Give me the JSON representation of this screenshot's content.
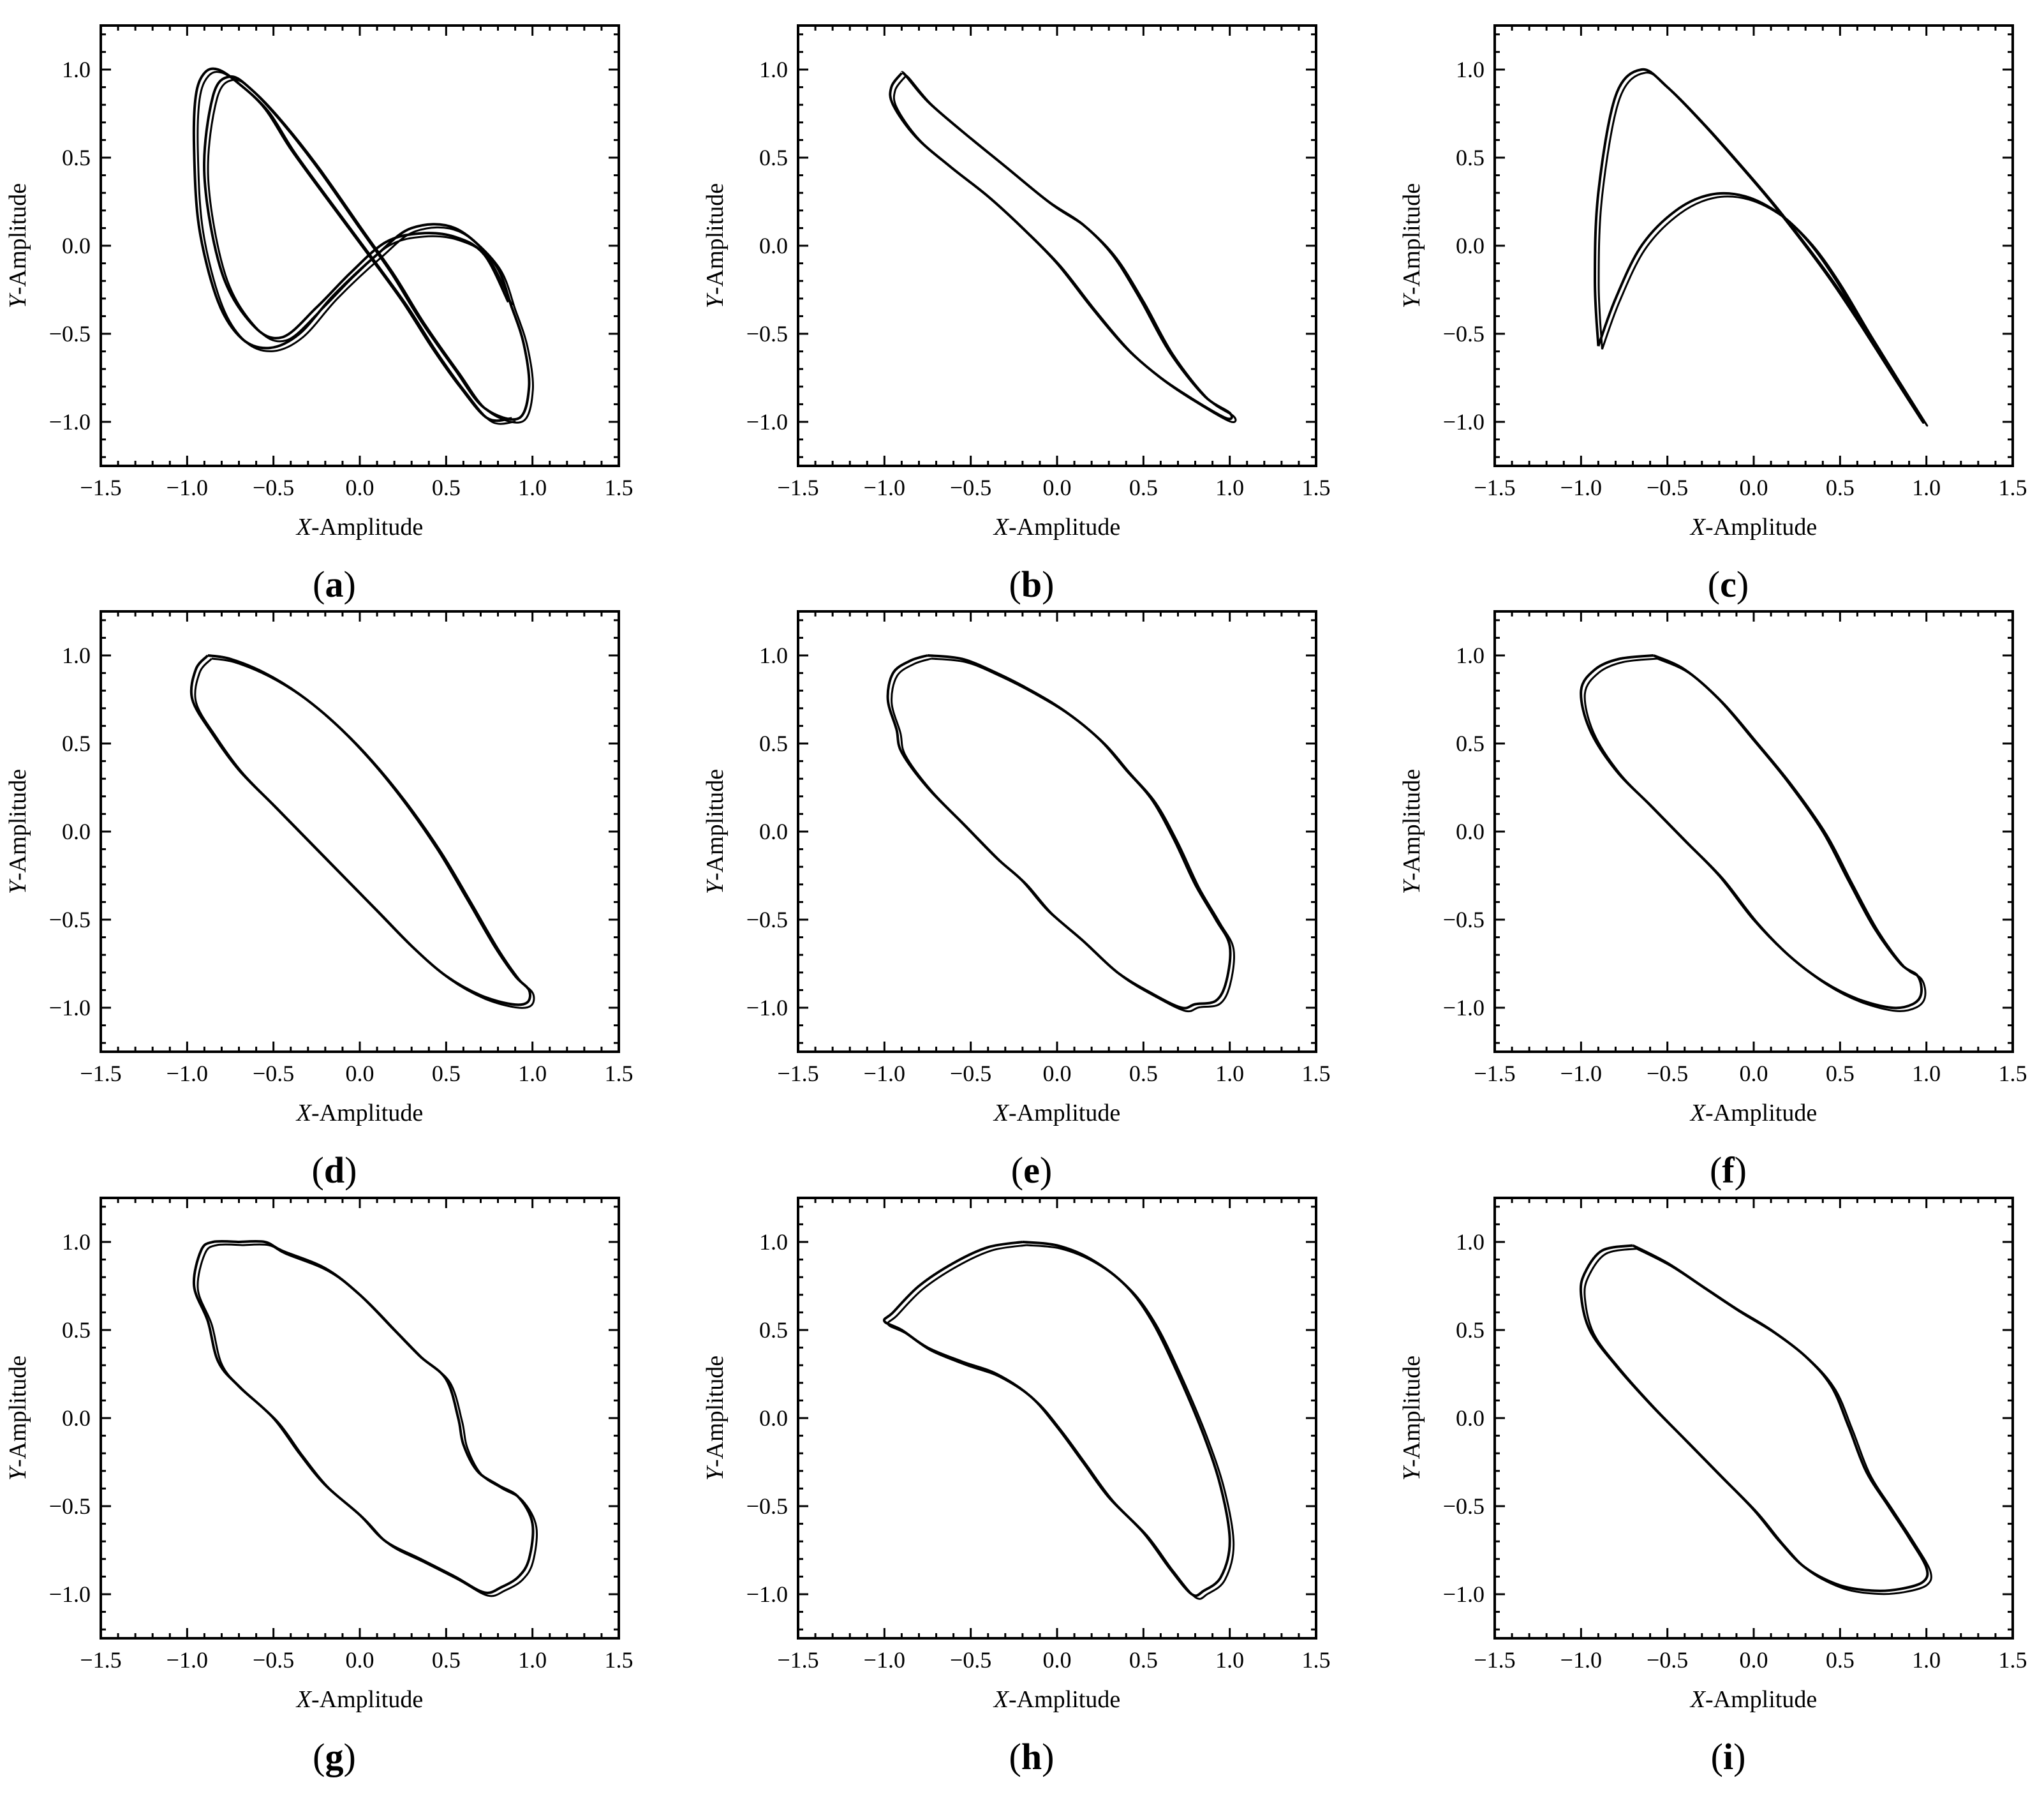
{
  "figure": {
    "line_color": "#000000",
    "background": "#ffffff"
  },
  "chart_data": [
    {
      "panel": "a",
      "type": "line",
      "xlabel_var": "X",
      "xlabel_rest": "-Amplitude",
      "ylabel_var": "Y",
      "ylabel_rest": "-Amplitude",
      "xlim": [
        -1.5,
        1.5
      ],
      "ylim": [
        -1.25,
        1.25
      ],
      "xticks": [
        -1.5,
        -1.0,
        -0.5,
        0.0,
        0.5,
        1.0,
        1.5
      ],
      "xtick_labels": [
        "−1.5",
        "−1.0",
        "−0.5",
        "0.0",
        "0.5",
        "1.0",
        "1.5"
      ],
      "yticks": [
        -1.0,
        -0.5,
        0.0,
        0.5,
        1.0
      ],
      "ytick_labels": [
        "−1.0",
        "−0.5",
        "0.0",
        "0.5",
        "1.0"
      ],
      "grid": false,
      "series": [
        {
          "x": [
            0.86,
            0.72,
            0.55,
            0.35,
            0.15,
            -0.05,
            -0.25,
            -0.45,
            -0.62,
            -0.8,
            -0.9,
            -0.85,
            -0.75,
            -0.62,
            -0.45,
            -0.25,
            0.0,
            0.18,
            0.35,
            0.55,
            0.72,
            0.92,
            0.98,
            0.95,
            0.88,
            0.78,
            0.55,
            0.3,
            0.1,
            -0.15,
            -0.35,
            -0.52,
            -0.68,
            -0.82,
            -0.93,
            -0.96,
            -0.95,
            -0.9,
            -0.82,
            -0.7,
            -0.55,
            -0.4,
            -0.2,
            0.05,
            0.25,
            0.42,
            0.58,
            0.74,
            0.88
          ],
          "y": [
            -0.32,
            -0.05,
            0.05,
            0.07,
            0.02,
            -0.15,
            -0.35,
            -0.52,
            -0.45,
            -0.15,
            0.4,
            0.85,
            0.96,
            0.88,
            0.7,
            0.45,
            0.1,
            -0.15,
            -0.42,
            -0.7,
            -0.92,
            -0.98,
            -0.8,
            -0.56,
            -0.35,
            -0.1,
            0.1,
            0.1,
            -0.05,
            -0.28,
            -0.5,
            -0.58,
            -0.53,
            -0.32,
            0.1,
            0.55,
            0.85,
            0.98,
            1.0,
            0.92,
            0.78,
            0.55,
            0.28,
            -0.05,
            -0.32,
            -0.58,
            -0.8,
            -0.98,
            -0.98
          ]
        }
      ]
    },
    {
      "panel": "b",
      "type": "line",
      "xlabel_var": "X",
      "xlabel_rest": "-Amplitude",
      "ylabel_var": "Y",
      "ylabel_rest": "-Amplitude",
      "xlim": [
        -1.5,
        1.5
      ],
      "ylim": [
        -1.25,
        1.25
      ],
      "xticks": [
        -1.5,
        -1.0,
        -0.5,
        0.0,
        0.5,
        1.0,
        1.5
      ],
      "xtick_labels": [
        "−1.5",
        "−1.0",
        "−0.5",
        "0.0",
        "0.5",
        "1.0",
        "1.5"
      ],
      "yticks": [
        -1.0,
        -0.5,
        0.0,
        0.5,
        1.0
      ],
      "ytick_labels": [
        "−1.0",
        "−0.5",
        "0.0",
        "0.5",
        "1.0"
      ],
      "grid": false,
      "series": [
        {
          "x": [
            -0.9,
            -0.96,
            -0.95,
            -0.82,
            -0.62,
            -0.4,
            -0.2,
            0.0,
            0.2,
            0.4,
            0.6,
            0.8,
            0.98,
            1.0,
            0.85,
            0.65,
            0.48,
            0.32,
            0.15,
            -0.05,
            -0.3,
            -0.55,
            -0.75,
            -0.88,
            -0.9
          ],
          "y": [
            0.98,
            0.9,
            0.8,
            0.62,
            0.45,
            0.28,
            0.1,
            -0.1,
            -0.35,
            -0.58,
            -0.75,
            -0.88,
            -0.98,
            -0.95,
            -0.85,
            -0.6,
            -0.3,
            -0.05,
            0.12,
            0.25,
            0.45,
            0.65,
            0.82,
            0.97,
            0.98
          ]
        }
      ]
    },
    {
      "panel": "c",
      "type": "line",
      "xlabel_var": "X",
      "xlabel_rest": "-Amplitude",
      "ylabel_var": "Y",
      "ylabel_rest": "-Amplitude",
      "xlim": [
        -1.5,
        1.5
      ],
      "ylim": [
        -1.25,
        1.25
      ],
      "xticks": [
        -1.5,
        -1.0,
        -0.5,
        0.0,
        0.5,
        1.0,
        1.5
      ],
      "xtick_labels": [
        "−1.5",
        "−1.0",
        "−0.5",
        "0.0",
        "0.5",
        "1.0",
        "1.5"
      ],
      "yticks": [
        -1.0,
        -0.5,
        0.0,
        0.5,
        1.0
      ],
      "ytick_labels": [
        "−1.0",
        "−0.5",
        "0.0",
        "0.5",
        "1.0"
      ],
      "grid": false,
      "series": [
        {
          "x": [
            -0.9,
            -0.8,
            -0.65,
            -0.45,
            -0.25,
            -0.05,
            0.15,
            0.32,
            0.48,
            0.65,
            0.82,
            0.98,
            0.9,
            0.75,
            0.6,
            0.45,
            0.3,
            0.1,
            -0.1,
            -0.3,
            -0.5,
            -0.65,
            -0.8,
            -0.9,
            -0.92,
            -0.9
          ],
          "y": [
            -0.57,
            -0.3,
            0.0,
            0.2,
            0.29,
            0.28,
            0.18,
            0.02,
            -0.2,
            -0.48,
            -0.75,
            -1.0,
            -0.88,
            -0.65,
            -0.42,
            -0.2,
            0.0,
            0.25,
            0.48,
            0.7,
            0.9,
            1.0,
            0.85,
            0.3,
            -0.2,
            -0.57
          ]
        }
      ]
    },
    {
      "panel": "d",
      "type": "line",
      "xlabel_var": "X",
      "xlabel_rest": "-Amplitude",
      "ylabel_var": "Y",
      "ylabel_rest": "-Amplitude",
      "xlim": [
        -1.5,
        1.5
      ],
      "ylim": [
        -1.25,
        1.25
      ],
      "xticks": [
        -1.5,
        -1.0,
        -0.5,
        0.0,
        0.5,
        1.0,
        1.5
      ],
      "xtick_labels": [
        "−1.5",
        "−1.0",
        "−0.5",
        "0.0",
        "0.5",
        "1.0",
        "1.5"
      ],
      "yticks": [
        -1.0,
        -0.5,
        0.0,
        0.5,
        1.0
      ],
      "ytick_labels": [
        "−1.0",
        "−0.5",
        "0.0",
        "0.5",
        "1.0"
      ],
      "grid": false,
      "series": [
        {
          "x": [
            -0.88,
            -0.75,
            -0.55,
            -0.35,
            -0.15,
            0.05,
            0.25,
            0.45,
            0.62,
            0.78,
            0.9,
            0.98,
            0.97,
            0.88,
            0.7,
            0.5,
            0.3,
            0.1,
            -0.1,
            -0.3,
            -0.5,
            -0.7,
            -0.85,
            -0.97,
            -0.95,
            -0.88
          ],
          "y": [
            1.0,
            0.98,
            0.9,
            0.78,
            0.62,
            0.42,
            0.18,
            -0.1,
            -0.38,
            -0.65,
            -0.82,
            -0.9,
            -0.97,
            -0.98,
            -0.93,
            -0.82,
            -0.65,
            -0.45,
            -0.25,
            -0.05,
            0.15,
            0.35,
            0.55,
            0.75,
            0.92,
            1.0
          ]
        }
      ]
    },
    {
      "panel": "e",
      "type": "line",
      "xlabel_var": "X",
      "xlabel_rest": "-Amplitude",
      "ylabel_var": "Y",
      "ylabel_rest": "-Amplitude",
      "xlim": [
        -1.5,
        1.5
      ],
      "ylim": [
        -1.25,
        1.25
      ],
      "xticks": [
        -1.5,
        -1.0,
        -0.5,
        0.0,
        0.5,
        1.0,
        1.5
      ],
      "xtick_labels": [
        "−1.5",
        "−1.0",
        "−0.5",
        "0.0",
        "0.5",
        "1.0",
        "1.5"
      ],
      "yticks": [
        -1.0,
        -0.5,
        0.0,
        0.5,
        1.0
      ],
      "ytick_labels": [
        "−1.0",
        "−0.5",
        "0.0",
        "0.5",
        "1.0"
      ],
      "grid": false,
      "series": [
        {
          "x": [
            -0.75,
            -0.55,
            -0.35,
            -0.15,
            0.05,
            0.25,
            0.4,
            0.55,
            0.68,
            0.8,
            0.92,
            1.0,
            0.98,
            0.92,
            0.8,
            0.72,
            0.55,
            0.35,
            0.15,
            -0.05,
            -0.2,
            -0.35,
            -0.55,
            -0.75,
            -0.9,
            -0.93,
            -0.98,
            -0.95,
            -0.85,
            -0.75
          ],
          "y": [
            1.0,
            0.98,
            0.9,
            0.8,
            0.68,
            0.52,
            0.35,
            0.18,
            -0.05,
            -0.3,
            -0.5,
            -0.65,
            -0.85,
            -0.96,
            -0.98,
            -1.0,
            -0.92,
            -0.8,
            -0.62,
            -0.45,
            -0.28,
            -0.15,
            0.05,
            0.25,
            0.45,
            0.58,
            0.75,
            0.9,
            0.97,
            1.0
          ]
        }
      ]
    },
    {
      "panel": "f",
      "type": "line",
      "xlabel_var": "X",
      "xlabel_rest": "-Amplitude",
      "ylabel_var": "Y",
      "ylabel_rest": "-Amplitude",
      "xlim": [
        -1.5,
        1.5
      ],
      "ylim": [
        -1.25,
        1.25
      ],
      "xticks": [
        -1.5,
        -1.0,
        -0.5,
        0.0,
        0.5,
        1.0,
        1.5
      ],
      "xtick_labels": [
        "−1.5",
        "−1.0",
        "−0.5",
        "0.0",
        "0.5",
        "1.0",
        "1.5"
      ],
      "yticks": [
        -1.0,
        -0.5,
        0.0,
        0.5,
        1.0
      ],
      "ytick_labels": [
        "−1.0",
        "−0.5",
        "0.0",
        "0.5",
        "1.0"
      ],
      "grid": false,
      "series": [
        {
          "x": [
            -0.58,
            -0.4,
            -0.2,
            0.0,
            0.2,
            0.4,
            0.55,
            0.7,
            0.85,
            0.95,
            0.97,
            0.92,
            0.8,
            0.6,
            0.4,
            0.2,
            0.0,
            -0.2,
            -0.4,
            -0.6,
            -0.8,
            -0.95,
            -1.0,
            -0.92,
            -0.78,
            -0.58
          ],
          "y": [
            1.0,
            0.92,
            0.75,
            0.52,
            0.28,
            0.0,
            -0.28,
            -0.55,
            -0.75,
            -0.82,
            -0.92,
            -0.98,
            -1.0,
            -0.95,
            -0.85,
            -0.7,
            -0.5,
            -0.25,
            -0.05,
            0.15,
            0.35,
            0.58,
            0.8,
            0.92,
            0.98,
            1.0
          ]
        }
      ]
    },
    {
      "panel": "g",
      "type": "line",
      "xlabel_var": "X",
      "xlabel_rest": "-Amplitude",
      "ylabel_var": "Y",
      "ylabel_rest": "-Amplitude",
      "xlim": [
        -1.5,
        1.5
      ],
      "ylim": [
        -1.25,
        1.25
      ],
      "xticks": [
        -1.5,
        -1.0,
        -0.5,
        0.0,
        0.5,
        1.0,
        1.5
      ],
      "xtick_labels": [
        "−1.5",
        "−1.0",
        "−0.5",
        "0.0",
        "0.5",
        "1.0",
        "1.5"
      ],
      "yticks": [
        -1.0,
        -0.5,
        0.0,
        0.5,
        1.0
      ],
      "ytick_labels": [
        "−1.0",
        "−0.5",
        "0.0",
        "0.5",
        "1.0"
      ],
      "grid": false,
      "series": [
        {
          "x": [
            -0.7,
            -0.55,
            -0.45,
            -0.2,
            0.0,
            0.2,
            0.35,
            0.5,
            0.57,
            0.6,
            0.68,
            0.8,
            0.92,
            1.0,
            0.98,
            0.92,
            0.82,
            0.72,
            0.55,
            0.35,
            0.15,
            0.0,
            -0.2,
            -0.35,
            -0.5,
            -0.7,
            -0.82,
            -0.88,
            -0.96,
            -0.92,
            -0.85,
            -0.7
          ],
          "y": [
            1.0,
            1.0,
            0.95,
            0.85,
            0.7,
            0.5,
            0.35,
            0.22,
            0.0,
            -0.15,
            -0.3,
            -0.38,
            -0.45,
            -0.6,
            -0.8,
            -0.9,
            -0.96,
            -0.99,
            -0.9,
            -0.8,
            -0.7,
            -0.55,
            -0.38,
            -0.2,
            0.0,
            0.18,
            0.32,
            0.55,
            0.75,
            0.95,
            1.0,
            1.0
          ]
        }
      ]
    },
    {
      "panel": "h",
      "type": "line",
      "xlabel_var": "X",
      "xlabel_rest": "-Amplitude",
      "ylabel_var": "Y",
      "ylabel_rest": "-Amplitude",
      "xlim": [
        -1.5,
        1.5
      ],
      "ylim": [
        -1.25,
        1.25
      ],
      "xticks": [
        -1.5,
        -1.0,
        -0.5,
        0.0,
        0.5,
        1.0,
        1.5
      ],
      "xtick_labels": [
        "−1.5",
        "−1.0",
        "−0.5",
        "0.0",
        "0.5",
        "1.0",
        "1.5"
      ],
      "yticks": [
        -1.0,
        -0.5,
        0.0,
        0.5,
        1.0
      ],
      "ytick_labels": [
        "−1.0",
        "−0.5",
        "0.0",
        "0.5",
        "1.0"
      ],
      "grid": false,
      "series": [
        {
          "x": [
            -0.2,
            0.0,
            0.2,
            0.4,
            0.55,
            0.7,
            0.85,
            0.95,
            1.0,
            0.95,
            0.85,
            0.78,
            0.65,
            0.5,
            0.3,
            0.15,
            0.0,
            -0.15,
            -0.35,
            -0.55,
            -0.75,
            -0.9,
            -1.0,
            -0.95,
            -0.8,
            -0.6,
            -0.4,
            -0.2
          ],
          "y": [
            1.0,
            0.98,
            0.9,
            0.75,
            0.55,
            0.25,
            -0.1,
            -0.4,
            -0.7,
            -0.9,
            -0.98,
            -1.0,
            -0.85,
            -0.65,
            -0.45,
            -0.25,
            -0.05,
            0.12,
            0.25,
            0.32,
            0.4,
            0.5,
            0.55,
            0.6,
            0.75,
            0.88,
            0.97,
            1.0
          ]
        }
      ]
    },
    {
      "panel": "i",
      "type": "line",
      "xlabel_var": "X",
      "xlabel_rest": "-Amplitude",
      "ylabel_var": "Y",
      "ylabel_rest": "-Amplitude",
      "xlim": [
        -1.5,
        1.5
      ],
      "ylim": [
        -1.25,
        1.25
      ],
      "xticks": [
        -1.5,
        -1.0,
        -0.5,
        0.0,
        0.5,
        1.0,
        1.5
      ],
      "xtick_labels": [
        "−1.5",
        "−1.0",
        "−0.5",
        "0.0",
        "0.5",
        "1.0",
        "1.5"
      ],
      "yticks": [
        -1.0,
        -0.5,
        0.0,
        0.5,
        1.0
      ],
      "ytick_labels": [
        "−1.0",
        "−0.5",
        "0.0",
        "0.5",
        "1.0"
      ],
      "grid": false,
      "series": [
        {
          "x": [
            -0.7,
            -0.5,
            -0.3,
            -0.1,
            0.1,
            0.3,
            0.45,
            0.55,
            0.65,
            0.78,
            0.9,
            1.0,
            0.98,
            0.85,
            0.7,
            0.5,
            0.3,
            0.15,
            0.0,
            -0.2,
            -0.4,
            -0.6,
            -0.8,
            -0.95,
            -1.0,
            -0.98,
            -0.88,
            -0.7
          ],
          "y": [
            0.98,
            0.88,
            0.75,
            0.62,
            0.5,
            0.35,
            0.18,
            -0.05,
            -0.3,
            -0.5,
            -0.68,
            -0.85,
            -0.93,
            -0.97,
            -0.98,
            -0.95,
            -0.85,
            -0.7,
            -0.52,
            -0.32,
            -0.12,
            0.08,
            0.3,
            0.5,
            0.7,
            0.82,
            0.95,
            0.98
          ]
        }
      ]
    }
  ],
  "panels": [
    "(a)",
    "(b)",
    "(c)",
    "(d)",
    "(e)",
    "(f)",
    "(g)",
    "(h)",
    "(i)"
  ]
}
